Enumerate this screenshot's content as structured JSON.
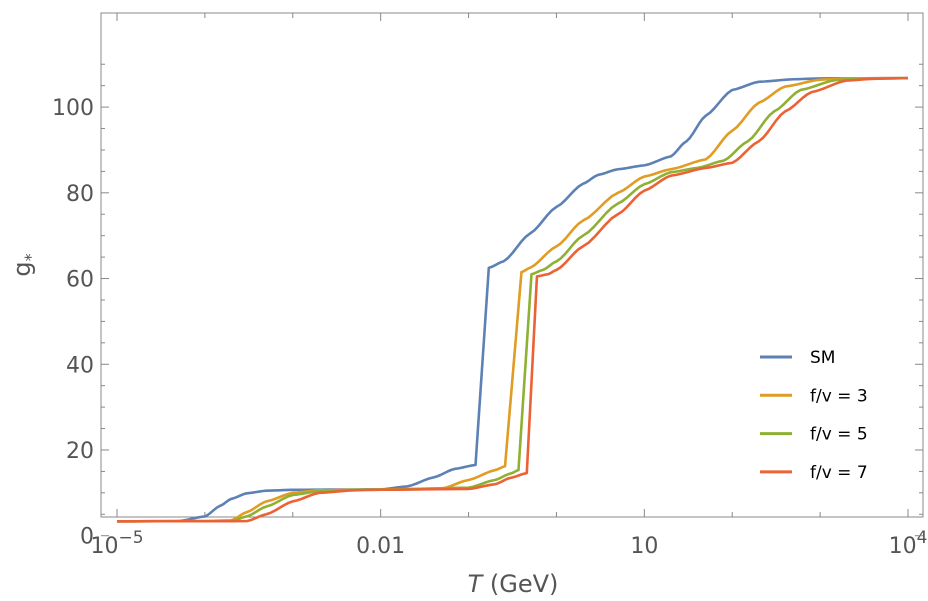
{
  "chart_data": {
    "type": "line",
    "xscale": "log",
    "xlim": [
      1e-05,
      10000
    ],
    "ylim": [
      -5,
      112
    ],
    "xlabel": {
      "italic": "T",
      "rest": " (GeV)"
    },
    "ylabel": {
      "base": "g",
      "sub": "*"
    },
    "x_ticks": [
      {
        "value": 1e-05,
        "base": "10",
        "exp": "−5"
      },
      {
        "value": 0.01,
        "text": "0.01"
      },
      {
        "value": 10,
        "text": "10"
      },
      {
        "value": 10000,
        "base": "10",
        "exp": "4"
      }
    ],
    "y_ticks": [
      0,
      20,
      40,
      60,
      80,
      100
    ],
    "grid": false,
    "legend_position": "bottom-right",
    "series": [
      {
        "name": "SM",
        "color": "#5E81B5",
        "points": [
          [
            1e-05,
            3.36
          ],
          [
            5e-05,
            3.4
          ],
          [
            0.0001,
            4.5
          ],
          [
            0.00015,
            7.0
          ],
          [
            0.0002,
            8.6
          ],
          [
            0.0003,
            9.9
          ],
          [
            0.0005,
            10.5
          ],
          [
            0.001,
            10.7
          ],
          [
            0.003,
            10.76
          ],
          [
            0.01,
            10.8
          ],
          [
            0.02,
            11.5
          ],
          [
            0.04,
            13.6
          ],
          [
            0.07,
            15.6
          ],
          [
            0.12,
            16.5
          ],
          [
            0.17,
            62.5
          ],
          [
            0.25,
            64.0
          ],
          [
            0.5,
            70.5
          ],
          [
            1,
            76.7
          ],
          [
            2,
            82.1
          ],
          [
            3,
            84.2
          ],
          [
            5,
            85.5
          ],
          [
            10,
            86.4
          ],
          [
            20,
            88.5
          ],
          [
            30,
            92.0
          ],
          [
            50,
            98.0
          ],
          [
            100,
            104.0
          ],
          [
            200,
            105.9
          ],
          [
            500,
            106.5
          ],
          [
            1000,
            106.7
          ],
          [
            10000,
            106.75
          ]
        ]
      },
      {
        "name": "f/v = 3",
        "color": "#E19C24",
        "points": [
          [
            1e-05,
            3.36
          ],
          [
            0.0001,
            3.4
          ],
          [
            0.0002,
            3.6
          ],
          [
            0.0003,
            5.5
          ],
          [
            0.0005,
            8.0
          ],
          [
            0.001,
            10.0
          ],
          [
            0.002,
            10.6
          ],
          [
            0.005,
            10.72
          ],
          [
            0.01,
            10.76
          ],
          [
            0.05,
            11.0
          ],
          [
            0.1,
            13.0
          ],
          [
            0.2,
            15.3
          ],
          [
            0.26,
            16.2
          ],
          [
            0.4,
            61.5
          ],
          [
            0.5,
            62.5
          ],
          [
            1,
            67.5
          ],
          [
            2,
            73.5
          ],
          [
            5,
            80.0
          ],
          [
            10,
            83.8
          ],
          [
            20,
            85.5
          ],
          [
            50,
            87.8
          ],
          [
            100,
            94.5
          ],
          [
            200,
            101.0
          ],
          [
            400,
            104.8
          ],
          [
            1000,
            106.4
          ],
          [
            2000,
            106.7
          ],
          [
            10000,
            106.75
          ]
        ]
      },
      {
        "name": "f/v = 5",
        "color": "#8FB032",
        "points": [
          [
            1e-05,
            3.36
          ],
          [
            0.0002,
            3.4
          ],
          [
            0.0003,
            4.5
          ],
          [
            0.0005,
            6.8
          ],
          [
            0.001,
            9.5
          ],
          [
            0.002,
            10.4
          ],
          [
            0.005,
            10.7
          ],
          [
            0.01,
            10.76
          ],
          [
            0.1,
            11.2
          ],
          [
            0.2,
            13.0
          ],
          [
            0.3,
            14.5
          ],
          [
            0.37,
            15.3
          ],
          [
            0.52,
            61.0
          ],
          [
            0.7,
            62.0
          ],
          [
            1,
            64.0
          ],
          [
            2,
            70.0
          ],
          [
            5,
            77.5
          ],
          [
            10,
            82.0
          ],
          [
            20,
            84.8
          ],
          [
            40,
            85.8
          ],
          [
            80,
            87.5
          ],
          [
            150,
            92.0
          ],
          [
            300,
            99.0
          ],
          [
            600,
            104.0
          ],
          [
            1500,
            106.3
          ],
          [
            3000,
            106.65
          ],
          [
            10000,
            106.75
          ]
        ]
      },
      {
        "name": "f/v = 7",
        "color": "#EB6235",
        "points": [
          [
            1e-05,
            3.36
          ],
          [
            0.0003,
            3.4
          ],
          [
            0.0005,
            5.0
          ],
          [
            0.001,
            8.0
          ],
          [
            0.002,
            10.0
          ],
          [
            0.005,
            10.6
          ],
          [
            0.01,
            10.72
          ],
          [
            0.1,
            10.9
          ],
          [
            0.2,
            12.0
          ],
          [
            0.3,
            13.5
          ],
          [
            0.46,
            14.6
          ],
          [
            0.6,
            60.5
          ],
          [
            0.8,
            61.0
          ],
          [
            1,
            62.0
          ],
          [
            2,
            67.5
          ],
          [
            5,
            75.0
          ],
          [
            10,
            80.5
          ],
          [
            20,
            84.0
          ],
          [
            50,
            85.8
          ],
          [
            100,
            87.0
          ],
          [
            200,
            92.0
          ],
          [
            400,
            99.0
          ],
          [
            800,
            103.5
          ],
          [
            2000,
            106.2
          ],
          [
            4000,
            106.6
          ],
          [
            10000,
            106.75
          ]
        ]
      }
    ]
  }
}
